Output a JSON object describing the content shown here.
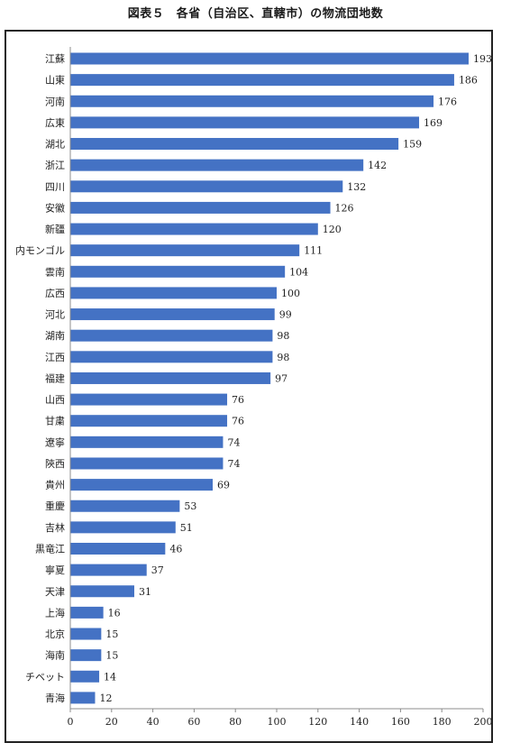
{
  "figure_title": "図表５　各省（自治区、直轄市）の物流団地数",
  "colors": {
    "bar": "#4472C4",
    "axis": "#8c8c8c",
    "frame": "#222222",
    "text": "#222222"
  },
  "chart_data": {
    "type": "bar",
    "orientation": "horizontal",
    "title": "図表５　各省（自治区、直轄市）の物流団地数",
    "xlabel": "",
    "ylabel": "",
    "xlim": [
      0,
      200
    ],
    "x_ticks": [
      0,
      20,
      40,
      60,
      80,
      100,
      120,
      140,
      160,
      180,
      200
    ],
    "grid": false,
    "legend": "none",
    "data_labels": true,
    "categories": [
      "江蘇",
      "山東",
      "河南",
      "広東",
      "湖北",
      "浙江",
      "四川",
      "安徽",
      "新疆",
      "内モンゴル",
      "雲南",
      "広西",
      "河北",
      "湖南",
      "江西",
      "福建",
      "山西",
      "甘粛",
      "遼寧",
      "陝西",
      "貴州",
      "重慶",
      "吉林",
      "黒竜江",
      "寧夏",
      "天津",
      "上海",
      "北京",
      "海南",
      "チベット",
      "青海"
    ],
    "values": [
      193,
      186,
      176,
      169,
      159,
      142,
      132,
      126,
      120,
      111,
      104,
      100,
      99,
      98,
      98,
      97,
      76,
      76,
      74,
      74,
      69,
      53,
      51,
      46,
      37,
      31,
      16,
      15,
      15,
      14,
      12
    ]
  }
}
